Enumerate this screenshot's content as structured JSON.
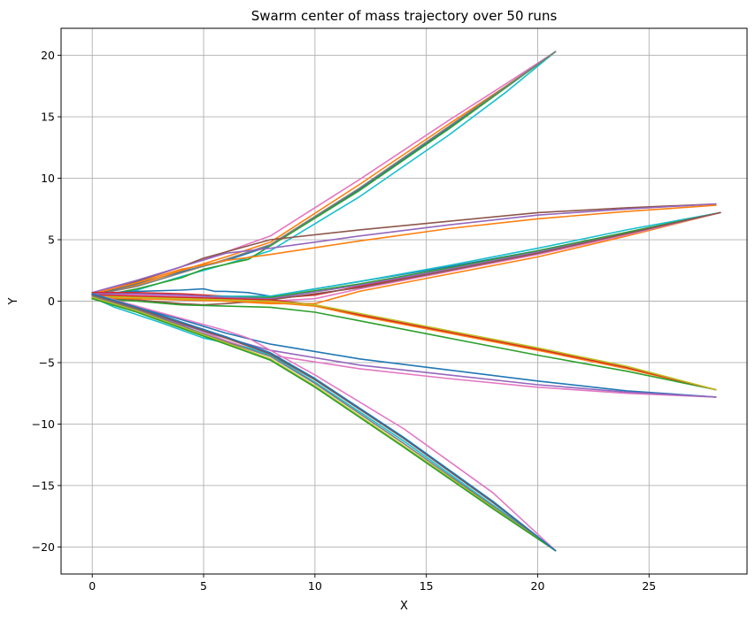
{
  "chart_data": {
    "type": "line",
    "title": "Swarm center of mass trajectory over 50 runs",
    "xlabel": "X",
    "ylabel": "Y",
    "xlim": [
      -1.4,
      29.4
    ],
    "ylim": [
      -22.2,
      22.2
    ],
    "xticks": [
      0,
      5,
      10,
      15,
      20,
      25
    ],
    "yticks": [
      -20,
      -15,
      -10,
      -5,
      0,
      5,
      10,
      15,
      20
    ],
    "xtick_labels": [
      "0",
      "5",
      "10",
      "15",
      "20",
      "25"
    ],
    "ytick_labels": [
      "−20",
      "−15",
      "−10",
      "−5",
      "0",
      "5",
      "10",
      "15",
      "20"
    ],
    "grid": true,
    "series": [
      {
        "color": "#1f77b4",
        "x": [
          0,
          2,
          4,
          6,
          8,
          12,
          16,
          18.5,
          20.8
        ],
        "y": [
          0.5,
          1.4,
          2.4,
          3.3,
          4.5,
          9.1,
          14.1,
          17.3,
          20.3
        ]
      },
      {
        "color": "#ff7f0e",
        "x": [
          0,
          2,
          4,
          6,
          8,
          12,
          16,
          18.5,
          20.8
        ],
        "y": [
          0.4,
          1.3,
          2.5,
          3.6,
          4.8,
          9.5,
          14.4,
          17.4,
          20.3
        ]
      },
      {
        "color": "#e377c2",
        "x": [
          0,
          2,
          4,
          6,
          8,
          12,
          16,
          18.5,
          20.8
        ],
        "y": [
          0.6,
          1.6,
          2.8,
          4.0,
          5.3,
          9.9,
          14.7,
          17.6,
          20.3
        ]
      },
      {
        "color": "#17becf",
        "x": [
          0,
          2,
          4,
          6,
          8,
          12,
          16,
          18.5,
          20.8
        ],
        "y": [
          0.2,
          0.9,
          2.0,
          3.0,
          4.1,
          8.5,
          13.5,
          16.9,
          20.3
        ]
      },
      {
        "color": "#2ca02c",
        "x": [
          0,
          2,
          4,
          5,
          7,
          8,
          12,
          16,
          20.8
        ],
        "y": [
          0.3,
          1.0,
          1.9,
          2.6,
          3.4,
          4.5,
          9.0,
          14.0,
          20.3
        ]
      },
      {
        "color": "#7f7f7f",
        "x": [
          0,
          2,
          4,
          6,
          8,
          12,
          16,
          20.8
        ],
        "y": [
          0.5,
          1.2,
          2.3,
          3.4,
          4.6,
          9.2,
          14.2,
          20.3
        ]
      },
      {
        "color": "#8c564b",
        "x": [
          0,
          2,
          4,
          5,
          6,
          8,
          12,
          16,
          20,
          24,
          28
        ],
        "y": [
          0.5,
          1.6,
          2.8,
          3.5,
          4.0,
          5.0,
          5.8,
          6.5,
          7.2,
          7.6,
          7.9
        ]
      },
      {
        "color": "#9467bd",
        "x": [
          0,
          2,
          4,
          6,
          8,
          12,
          16,
          20,
          24,
          28
        ],
        "y": [
          0.7,
          1.7,
          2.8,
          3.9,
          4.3,
          5.3,
          6.2,
          7.0,
          7.5,
          7.9
        ]
      },
      {
        "color": "#ff7f0e",
        "x": [
          0,
          2,
          4,
          6,
          8,
          12,
          16,
          20,
          24,
          28
        ],
        "y": [
          0.6,
          1.5,
          2.6,
          3.3,
          3.8,
          4.9,
          5.9,
          6.7,
          7.3,
          7.8
        ]
      },
      {
        "color": "#1f77b4",
        "x": [
          0,
          2,
          4,
          5,
          5.5,
          6,
          7,
          8,
          12,
          16,
          20,
          24,
          28.2
        ],
        "y": [
          0.6,
          0.8,
          0.9,
          1.0,
          0.8,
          0.8,
          0.7,
          0.4,
          1.6,
          2.8,
          4.1,
          5.6,
          7.2
        ]
      },
      {
        "color": "#d62728",
        "x": [
          0,
          2,
          4,
          6,
          8,
          10,
          12,
          16,
          20,
          24,
          28.2
        ],
        "y": [
          0.7,
          0.7,
          0.6,
          0.4,
          0.2,
          0.5,
          1.2,
          2.5,
          3.9,
          5.5,
          7.2
        ]
      },
      {
        "color": "#17becf",
        "x": [
          0,
          2,
          4,
          6,
          8,
          12,
          16,
          20,
          24,
          28.2
        ],
        "y": [
          0.4,
          0.5,
          0.4,
          0.4,
          0.4,
          1.6,
          2.9,
          4.3,
          5.8,
          7.2
        ]
      },
      {
        "color": "#2ca02c",
        "x": [
          0,
          2,
          4,
          6,
          8,
          12,
          16,
          20,
          24,
          28.2
        ],
        "y": [
          0.5,
          0.4,
          0.3,
          0.3,
          0.3,
          1.4,
          2.7,
          4.1,
          5.6,
          7.2
        ]
      },
      {
        "color": "#ff7f0e",
        "x": [
          0,
          2,
          4,
          6,
          8,
          10,
          12,
          16,
          20,
          24,
          28.2
        ],
        "y": [
          0.3,
          0.3,
          0.2,
          0.0,
          -0.2,
          -0.2,
          0.8,
          2.2,
          3.6,
          5.3,
          7.2
        ]
      },
      {
        "color": "#e377c2",
        "x": [
          0,
          2,
          4,
          6,
          8,
          10,
          12,
          16,
          20,
          24,
          28.2
        ],
        "y": [
          0.5,
          0.5,
          0.4,
          0.2,
          0.0,
          0.2,
          1.0,
          2.4,
          3.8,
          5.4,
          7.2
        ]
      },
      {
        "color": "#9467bd",
        "x": [
          0,
          2,
          4,
          6,
          8,
          12,
          16,
          20,
          24,
          28.2
        ],
        "y": [
          0.6,
          0.6,
          0.5,
          0.3,
          0.2,
          1.3,
          2.6,
          4.0,
          5.5,
          7.2
        ]
      },
      {
        "color": "#8c564b",
        "x": [
          0,
          2,
          4,
          5,
          6,
          8,
          12,
          16,
          20,
          24,
          28.2
        ],
        "y": [
          0.3,
          0.1,
          -0.2,
          -0.3,
          -0.2,
          0.1,
          1.1,
          2.5,
          3.9,
          5.5,
          7.2
        ]
      },
      {
        "color": "#ff7f0e",
        "x": [
          0,
          2,
          4,
          6,
          8,
          10,
          12,
          16,
          20,
          24,
          28
        ],
        "y": [
          0.3,
          0.2,
          0.1,
          0.0,
          -0.1,
          -0.4,
          -1.2,
          -2.6,
          -4.0,
          -5.5,
          -7.2
        ]
      },
      {
        "color": "#2ca02c",
        "x": [
          0,
          2,
          4,
          6,
          8,
          10,
          12,
          16,
          20,
          24,
          28
        ],
        "y": [
          0.2,
          0.0,
          -0.3,
          -0.4,
          -0.5,
          -0.9,
          -1.6,
          -3.0,
          -4.4,
          -5.7,
          -7.2
        ]
      },
      {
        "color": "#d62728",
        "x": [
          0,
          2,
          4,
          6,
          8,
          10,
          12,
          16,
          20,
          24,
          28
        ],
        "y": [
          0.5,
          0.4,
          0.3,
          0.2,
          0.1,
          -0.3,
          -1.1,
          -2.5,
          -3.9,
          -5.4,
          -7.2
        ]
      },
      {
        "color": "#bcbd22",
        "x": [
          0,
          2,
          4,
          6,
          8,
          10,
          12,
          16,
          20,
          24,
          28
        ],
        "y": [
          0.4,
          0.3,
          0.2,
          0.1,
          0.0,
          -0.3,
          -1.0,
          -2.4,
          -3.8,
          -5.3,
          -7.2
        ]
      },
      {
        "color": "#1f77b4",
        "x": [
          0,
          2,
          4,
          6,
          8,
          12,
          16,
          20,
          24,
          28
        ],
        "y": [
          0.6,
          -0.5,
          -1.5,
          -2.6,
          -3.5,
          -4.7,
          -5.6,
          -6.5,
          -7.3,
          -7.8
        ]
      },
      {
        "color": "#e377c2",
        "x": [
          0,
          2,
          4,
          6,
          8,
          12,
          16,
          20,
          24,
          28
        ],
        "y": [
          0.5,
          -0.6,
          -1.8,
          -3.2,
          -4.4,
          -5.5,
          -6.3,
          -7.0,
          -7.5,
          -7.8
        ]
      },
      {
        "color": "#9467bd",
        "x": [
          0,
          2,
          4,
          6,
          8,
          12,
          16,
          20,
          24,
          28
        ],
        "y": [
          0.4,
          -0.7,
          -1.9,
          -3.0,
          -4.0,
          -5.2,
          -6.0,
          -6.8,
          -7.4,
          -7.8
        ]
      },
      {
        "color": "#e377c2",
        "x": [
          0,
          2,
          4,
          6,
          7,
          8,
          10,
          14,
          18,
          20.8
        ],
        "y": [
          0.6,
          -0.4,
          -1.4,
          -2.4,
          -3.0,
          -4.0,
          -6.0,
          -10.4,
          -15.6,
          -20.3
        ]
      },
      {
        "color": "#17becf",
        "x": [
          0,
          1,
          2,
          3,
          5,
          7,
          8,
          10,
          14,
          18,
          20.8
        ],
        "y": [
          0.3,
          -0.5,
          -1.1,
          -1.7,
          -3.0,
          -3.8,
          -4.4,
          -6.6,
          -11.4,
          -16.6,
          -20.3
        ]
      },
      {
        "color": "#8c564b",
        "x": [
          0,
          2,
          4,
          6,
          8,
          10,
          14,
          18,
          20.8
        ],
        "y": [
          0.5,
          -0.6,
          -1.8,
          -3.0,
          -4.3,
          -6.4,
          -11.2,
          -16.4,
          -20.3
        ]
      },
      {
        "color": "#7f7f7f",
        "x": [
          0,
          2,
          4,
          6,
          8,
          10,
          14,
          18,
          20.8
        ],
        "y": [
          0.4,
          -0.7,
          -2.0,
          -3.3,
          -4.5,
          -6.7,
          -11.6,
          -16.7,
          -20.3
        ]
      },
      {
        "color": "#bcbd22",
        "x": [
          0,
          2,
          4,
          6,
          8,
          10,
          14,
          18,
          20.8
        ],
        "y": [
          0.3,
          -0.8,
          -2.1,
          -3.4,
          -4.7,
          -6.9,
          -11.8,
          -16.8,
          -20.3
        ]
      },
      {
        "color": "#2ca02c",
        "x": [
          0,
          2,
          4,
          6,
          8,
          10,
          14,
          18,
          20.8
        ],
        "y": [
          0.2,
          -0.9,
          -2.2,
          -3.5,
          -4.8,
          -7.0,
          -11.9,
          -16.9,
          -20.3
        ]
      },
      {
        "color": "#1f77b4",
        "x": [
          0,
          2,
          4,
          6,
          8,
          10,
          14,
          18,
          20.8
        ],
        "y": [
          0.6,
          -0.5,
          -1.7,
          -2.9,
          -4.2,
          -6.3,
          -11.1,
          -16.3,
          -20.3
        ]
      }
    ]
  }
}
